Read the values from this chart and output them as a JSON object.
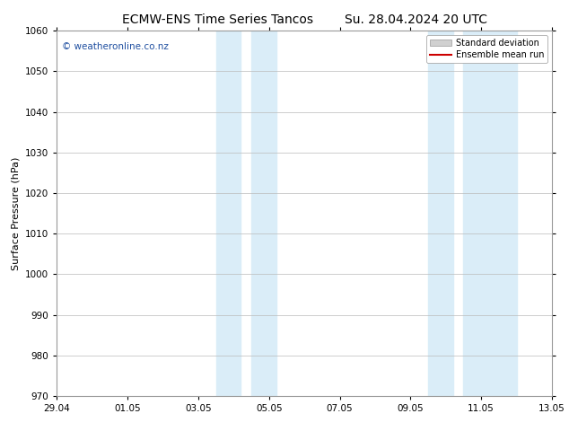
{
  "title_left": "ECMW-ENS Time Series Tancos",
  "title_right": "Su. 28.04.2024 20 UTC",
  "ylabel": "Surface Pressure (hPa)",
  "ylim": [
    970,
    1060
  ],
  "yticks": [
    970,
    980,
    990,
    1000,
    1010,
    1020,
    1030,
    1040,
    1050,
    1060
  ],
  "xtick_labels": [
    "29.04",
    "01.05",
    "03.05",
    "05.05",
    "07.05",
    "09.05",
    "11.05",
    "13.05"
  ],
  "xtick_positions": [
    0,
    2,
    4,
    6,
    8,
    10,
    12,
    14
  ],
  "xlim": [
    0,
    14
  ],
  "shaded_bands": [
    {
      "x_start": 4.5,
      "x_end": 5.5
    },
    {
      "x_start": 5.5,
      "x_end": 6.5
    },
    {
      "x_start": 10.5,
      "x_end": 11.5
    },
    {
      "x_start": 12.0,
      "x_end": 13.5
    }
  ],
  "shaded_color": "#daedf8",
  "watermark": "© weatheronline.co.nz",
  "watermark_color": "#1f4fa0",
  "legend_items": [
    {
      "label": "Standard deviation",
      "color": "#cccccc",
      "type": "band"
    },
    {
      "label": "Ensemble mean run",
      "color": "#cc0000",
      "type": "line"
    }
  ],
  "background_color": "#ffffff",
  "grid_color": "#bbbbbb",
  "title_fontsize": 10,
  "axis_label_fontsize": 8,
  "tick_fontsize": 7.5
}
